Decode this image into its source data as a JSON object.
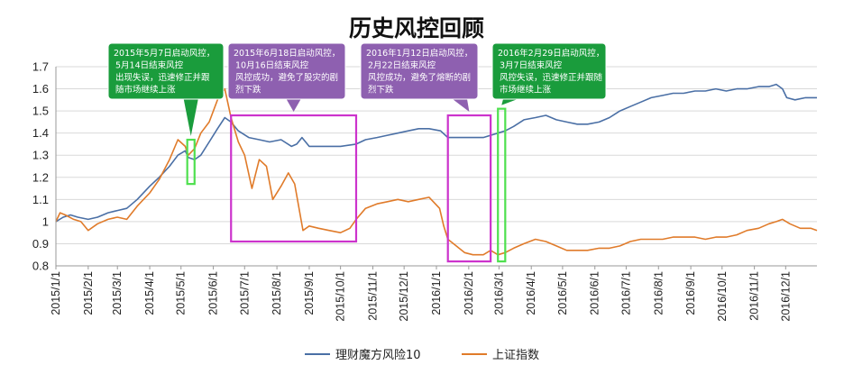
{
  "chart_data": {
    "type": "line",
    "title": "历史风控回顾",
    "xlabel": "",
    "ylabel": "",
    "ylim": [
      0.8,
      1.7
    ],
    "yticks": [
      "0.8",
      "0.9",
      "1",
      "1.1",
      "1.2",
      "1.3",
      "1.4",
      "1.5",
      "1.6",
      "1.7"
    ],
    "xticks": [
      "2015/1/1",
      "2015/2/1",
      "2015/3/1",
      "2015/4/1",
      "2015/5/1",
      "2015/6/1",
      "2015/7/1",
      "2015/8/1",
      "2015/9/1",
      "2015/10/1",
      "2015/11/1",
      "2015/12/1",
      "2016/1/1",
      "2016/2/1",
      "2016/3/1",
      "2016/4/1",
      "2016/5/1",
      "2016/6/1",
      "2016/7/1",
      "2016/8/1",
      "2016/9/1",
      "2016/10/1",
      "2016/11/1",
      "2016/12/1"
    ],
    "xrange": [
      "2015-01-01",
      "2016-12-31"
    ],
    "grid": "horizontal",
    "legend": "bottom",
    "series": [
      {
        "name": "理财魔方风险10",
        "color": "#4a6fa5",
        "points": [
          [
            "2015-01-01",
            1.0
          ],
          [
            "2015-01-08",
            1.02
          ],
          [
            "2015-01-15",
            1.03
          ],
          [
            "2015-01-22",
            1.02
          ],
          [
            "2015-02-01",
            1.01
          ],
          [
            "2015-02-10",
            1.02
          ],
          [
            "2015-02-20",
            1.04
          ],
          [
            "2015-03-01",
            1.05
          ],
          [
            "2015-03-10",
            1.06
          ],
          [
            "2015-03-20",
            1.1
          ],
          [
            "2015-04-01",
            1.16
          ],
          [
            "2015-04-10",
            1.2
          ],
          [
            "2015-04-20",
            1.25
          ],
          [
            "2015-04-28",
            1.3
          ],
          [
            "2015-05-05",
            1.32
          ],
          [
            "2015-05-08",
            1.29
          ],
          [
            "2015-05-14",
            1.28
          ],
          [
            "2015-05-20",
            1.3
          ],
          [
            "2015-05-28",
            1.36
          ],
          [
            "2015-06-05",
            1.42
          ],
          [
            "2015-06-12",
            1.47
          ],
          [
            "2015-06-18",
            1.45
          ],
          [
            "2015-06-25",
            1.41
          ],
          [
            "2015-07-05",
            1.38
          ],
          [
            "2015-07-15",
            1.37
          ],
          [
            "2015-07-25",
            1.36
          ],
          [
            "2015-08-05",
            1.37
          ],
          [
            "2015-08-15",
            1.34
          ],
          [
            "2015-08-20",
            1.35
          ],
          [
            "2015-08-25",
            1.38
          ],
          [
            "2015-09-01",
            1.34
          ],
          [
            "2015-09-15",
            1.34
          ],
          [
            "2015-10-01",
            1.34
          ],
          [
            "2015-10-16",
            1.35
          ],
          [
            "2015-10-25",
            1.37
          ],
          [
            "2015-11-05",
            1.38
          ],
          [
            "2015-11-15",
            1.39
          ],
          [
            "2015-11-25",
            1.4
          ],
          [
            "2015-12-05",
            1.41
          ],
          [
            "2015-12-15",
            1.42
          ],
          [
            "2015-12-25",
            1.42
          ],
          [
            "2016-01-05",
            1.41
          ],
          [
            "2016-01-12",
            1.38
          ],
          [
            "2016-01-20",
            1.38
          ],
          [
            "2016-02-01",
            1.38
          ],
          [
            "2016-02-15",
            1.38
          ],
          [
            "2016-02-22",
            1.39
          ],
          [
            "2016-02-29",
            1.4
          ],
          [
            "2016-03-07",
            1.41
          ],
          [
            "2016-03-15",
            1.43
          ],
          [
            "2016-03-25",
            1.46
          ],
          [
            "2016-04-05",
            1.47
          ],
          [
            "2016-04-15",
            1.48
          ],
          [
            "2016-04-25",
            1.46
          ],
          [
            "2016-05-05",
            1.45
          ],
          [
            "2016-05-15",
            1.44
          ],
          [
            "2016-05-25",
            1.44
          ],
          [
            "2016-06-05",
            1.45
          ],
          [
            "2016-06-15",
            1.47
          ],
          [
            "2016-06-25",
            1.5
          ],
          [
            "2016-07-05",
            1.52
          ],
          [
            "2016-07-15",
            1.54
          ],
          [
            "2016-07-25",
            1.56
          ],
          [
            "2016-08-05",
            1.57
          ],
          [
            "2016-08-15",
            1.58
          ],
          [
            "2016-08-25",
            1.58
          ],
          [
            "2016-09-05",
            1.59
          ],
          [
            "2016-09-15",
            1.59
          ],
          [
            "2016-09-25",
            1.6
          ],
          [
            "2016-10-05",
            1.59
          ],
          [
            "2016-10-15",
            1.6
          ],
          [
            "2016-10-25",
            1.6
          ],
          [
            "2016-11-05",
            1.61
          ],
          [
            "2016-11-15",
            1.61
          ],
          [
            "2016-11-22",
            1.62
          ],
          [
            "2016-11-28",
            1.6
          ],
          [
            "2016-12-02",
            1.56
          ],
          [
            "2016-12-10",
            1.55
          ],
          [
            "2016-12-20",
            1.56
          ],
          [
            "2016-12-31",
            1.56
          ]
        ]
      },
      {
        "name": "上证指数",
        "color": "#e07b2a",
        "points": [
          [
            "2015-01-01",
            1.0
          ],
          [
            "2015-01-05",
            1.04
          ],
          [
            "2015-01-10",
            1.03
          ],
          [
            "2015-01-18",
            1.01
          ],
          [
            "2015-01-25",
            1.0
          ],
          [
            "2015-02-01",
            0.96
          ],
          [
            "2015-02-10",
            0.99
          ],
          [
            "2015-02-20",
            1.01
          ],
          [
            "2015-03-01",
            1.02
          ],
          [
            "2015-03-10",
            1.01
          ],
          [
            "2015-03-20",
            1.07
          ],
          [
            "2015-04-01",
            1.13
          ],
          [
            "2015-04-10",
            1.19
          ],
          [
            "2015-04-20",
            1.28
          ],
          [
            "2015-04-28",
            1.37
          ],
          [
            "2015-05-05",
            1.34
          ],
          [
            "2015-05-08",
            1.3
          ],
          [
            "2015-05-14",
            1.33
          ],
          [
            "2015-05-20",
            1.4
          ],
          [
            "2015-05-28",
            1.45
          ],
          [
            "2015-06-05",
            1.55
          ],
          [
            "2015-06-12",
            1.6
          ],
          [
            "2015-06-18",
            1.47
          ],
          [
            "2015-06-25",
            1.36
          ],
          [
            "2015-07-01",
            1.3
          ],
          [
            "2015-07-08",
            1.15
          ],
          [
            "2015-07-15",
            1.28
          ],
          [
            "2015-07-22",
            1.25
          ],
          [
            "2015-07-28",
            1.1
          ],
          [
            "2015-08-05",
            1.16
          ],
          [
            "2015-08-12",
            1.22
          ],
          [
            "2015-08-18",
            1.17
          ],
          [
            "2015-08-26",
            0.96
          ],
          [
            "2015-09-01",
            0.98
          ],
          [
            "2015-09-10",
            0.97
          ],
          [
            "2015-09-20",
            0.96
          ],
          [
            "2015-10-01",
            0.95
          ],
          [
            "2015-10-10",
            0.97
          ],
          [
            "2015-10-16",
            1.01
          ],
          [
            "2015-10-25",
            1.06
          ],
          [
            "2015-11-05",
            1.08
          ],
          [
            "2015-11-15",
            1.09
          ],
          [
            "2015-11-25",
            1.1
          ],
          [
            "2015-12-05",
            1.09
          ],
          [
            "2015-12-15",
            1.1
          ],
          [
            "2015-12-25",
            1.11
          ],
          [
            "2016-01-04",
            1.06
          ],
          [
            "2016-01-08",
            0.98
          ],
          [
            "2016-01-12",
            0.92
          ],
          [
            "2016-01-20",
            0.89
          ],
          [
            "2016-01-28",
            0.86
          ],
          [
            "2016-02-05",
            0.85
          ],
          [
            "2016-02-15",
            0.85
          ],
          [
            "2016-02-22",
            0.87
          ],
          [
            "2016-02-29",
            0.85
          ],
          [
            "2016-03-07",
            0.86
          ],
          [
            "2016-03-15",
            0.88
          ],
          [
            "2016-03-25",
            0.9
          ],
          [
            "2016-04-05",
            0.92
          ],
          [
            "2016-04-15",
            0.91
          ],
          [
            "2016-04-25",
            0.89
          ],
          [
            "2016-05-05",
            0.87
          ],
          [
            "2016-05-15",
            0.87
          ],
          [
            "2016-05-25",
            0.87
          ],
          [
            "2016-06-05",
            0.88
          ],
          [
            "2016-06-15",
            0.88
          ],
          [
            "2016-06-25",
            0.89
          ],
          [
            "2016-07-05",
            0.91
          ],
          [
            "2016-07-15",
            0.92
          ],
          [
            "2016-07-25",
            0.92
          ],
          [
            "2016-08-05",
            0.92
          ],
          [
            "2016-08-15",
            0.93
          ],
          [
            "2016-08-25",
            0.93
          ],
          [
            "2016-09-05",
            0.93
          ],
          [
            "2016-09-15",
            0.92
          ],
          [
            "2016-09-25",
            0.93
          ],
          [
            "2016-10-05",
            0.93
          ],
          [
            "2016-10-15",
            0.94
          ],
          [
            "2016-10-25",
            0.96
          ],
          [
            "2016-11-05",
            0.97
          ],
          [
            "2016-11-15",
            0.99
          ],
          [
            "2016-11-22",
            1.0
          ],
          [
            "2016-11-28",
            1.01
          ],
          [
            "2016-12-05",
            0.99
          ],
          [
            "2016-12-15",
            0.97
          ],
          [
            "2016-12-25",
            0.97
          ],
          [
            "2016-12-31",
            0.96
          ]
        ]
      }
    ],
    "highlight_boxes": [
      {
        "x": [
          "2015-05-07",
          "2015-05-14"
        ],
        "y": [
          1.17,
          1.37
        ],
        "color": "#4fe04f"
      },
      {
        "x": [
          "2015-06-18",
          "2015-10-16"
        ],
        "y": [
          0.91,
          1.48
        ],
        "color": "#cc33cc"
      },
      {
        "x": [
          "2016-01-12",
          "2016-02-22"
        ],
        "y": [
          0.82,
          1.48
        ],
        "color": "#cc33cc"
      },
      {
        "x": [
          "2016-02-29",
          "2016-03-07"
        ],
        "y": [
          0.82,
          1.51
        ],
        "color": "#4fe04f"
      }
    ],
    "annotations": [
      {
        "lines": [
          "2015年5月7日启动风控，",
          "5月14日结束风控",
          "出现失误，迅速修正并跟",
          "随市场继续上涨"
        ],
        "color": "#1a9c3c",
        "box": 0
      },
      {
        "lines": [
          "2015年6月18日启动风控，",
          "10月16日结束风控",
          "风控成功，避免了股灾的剧",
          "烈下跌"
        ],
        "color": "#8e60b0",
        "box": 1
      },
      {
        "lines": [
          "2016年1月12日启动风控，",
          "2月22日结束风控",
          "风控成功，避免了熔断的剧",
          "烈下跌"
        ],
        "color": "#8e60b0",
        "box": 2
      },
      {
        "lines": [
          "2016年2月29日启动风控，",
          "3月7日结束风控",
          "风控失误，迅速修正并跟随",
          "市场继续上涨"
        ],
        "color": "#1a9c3c",
        "box": 3
      }
    ]
  }
}
